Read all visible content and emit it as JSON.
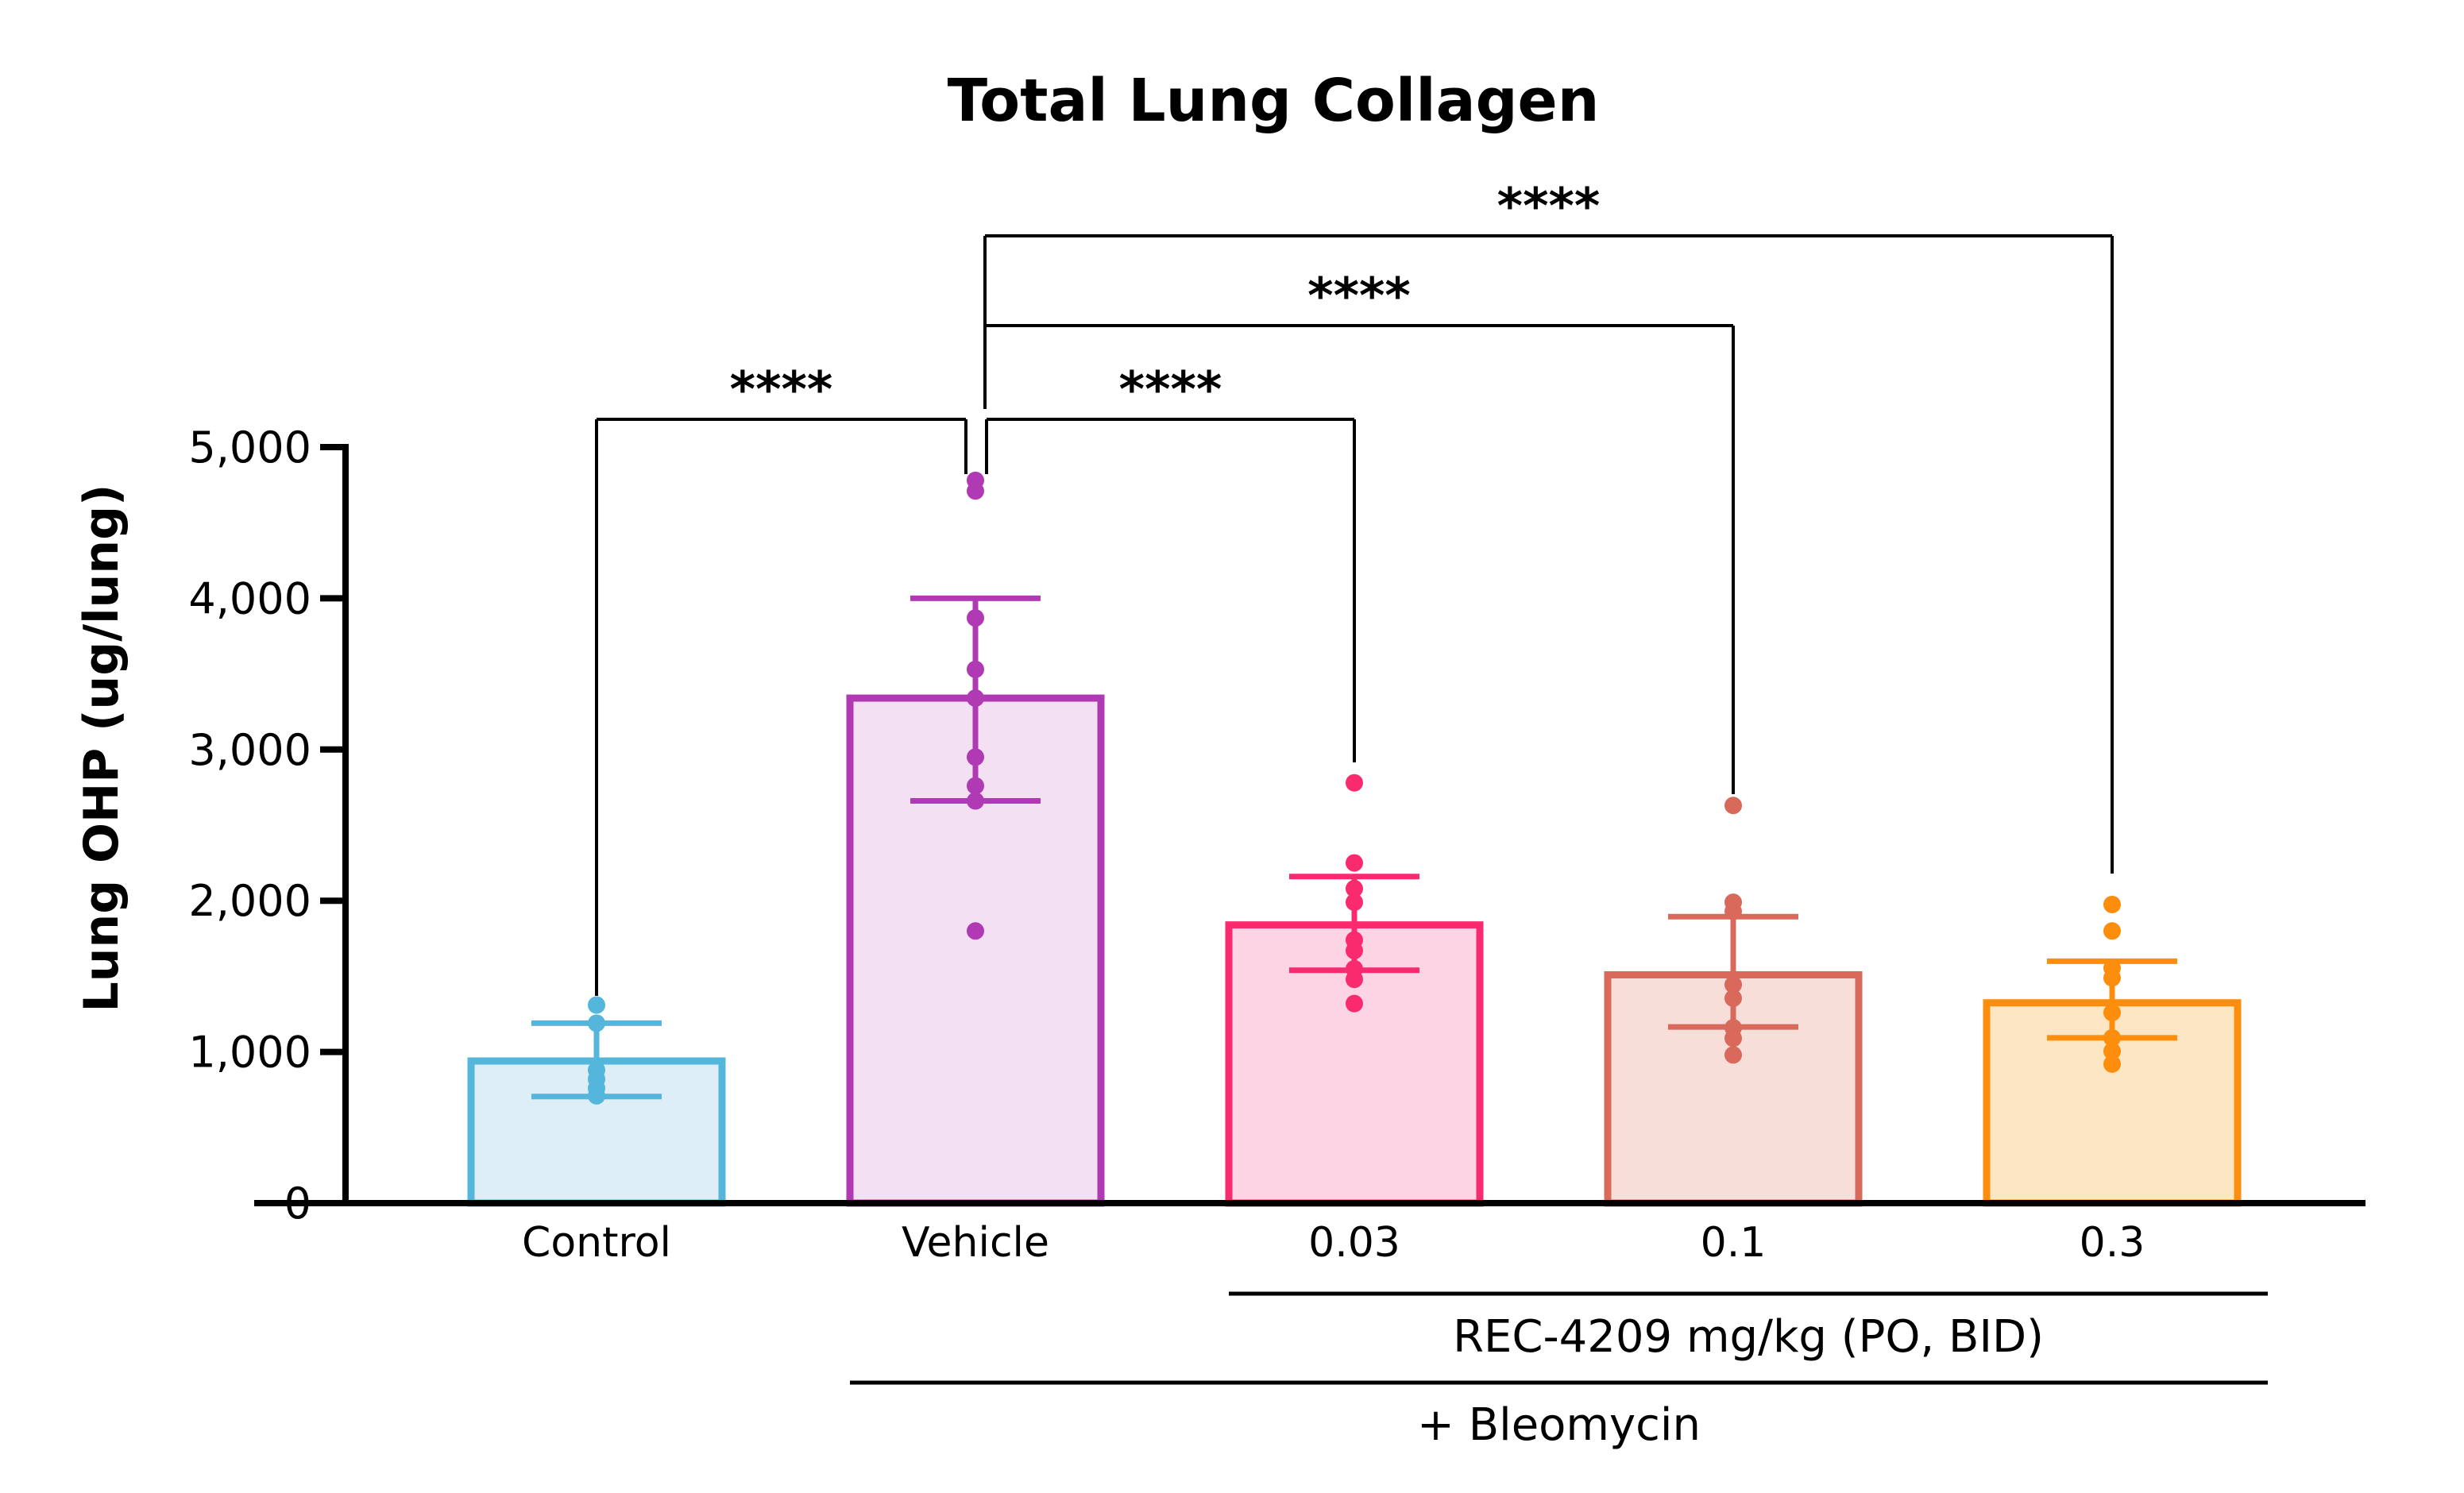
{
  "chart_data": {
    "type": "bar",
    "title": "Total Lung Collagen",
    "ylabel": "Lung OHP (ug/lung)",
    "xlabel": "",
    "ylim": [
      0,
      5000
    ],
    "yticks": [
      0,
      1000,
      2000,
      3000,
      4000,
      5000
    ],
    "ytick_labels": [
      "0",
      "1,000",
      "2,000",
      "3,000",
      "4,000",
      "5,000"
    ],
    "grid": "off",
    "legend": "none",
    "categories": [
      "Control",
      "Vehicle",
      "0.03",
      "0.1",
      "0.3"
    ],
    "series": [
      {
        "name": "Control",
        "mean": 940,
        "err_low": 705,
        "err_high": 1190,
        "points": [
          1310,
          1190,
          880,
          820,
          760,
          710
        ],
        "fill": "#ddeef7",
        "stroke": "#54b6da"
      },
      {
        "name": "Vehicle",
        "mean": 3340,
        "err_low": 2660,
        "err_high": 4000,
        "points": [
          4780,
          4710,
          3870,
          3530,
          3340,
          2950,
          2760,
          2660,
          1800
        ],
        "fill": "#f4e0f3",
        "stroke": "#b03ab3"
      },
      {
        "name": "0.03",
        "mean": 1840,
        "err_low": 1540,
        "err_high": 2160,
        "points": [
          2780,
          2250,
          2080,
          1990,
          1740,
          1670,
          1550,
          1480,
          1320
        ],
        "fill": "#fdd4e3",
        "stroke": "#fa2a6f"
      },
      {
        "name": "0.1",
        "mean": 1510,
        "err_low": 1165,
        "err_high": 1895,
        "points": [
          2630,
          1990,
          1930,
          1445,
          1355,
          1160,
          1090,
          980
        ],
        "fill": "#f8ded8",
        "stroke": "#d8695b"
      },
      {
        "name": "0.3",
        "mean": 1325,
        "err_low": 1093,
        "err_high": 1600,
        "points": [
          1975,
          1800,
          1555,
          1490,
          1260,
          1093,
          1005,
          920
        ],
        "fill": "#fde6c4",
        "stroke": "#fc8d0d"
      }
    ],
    "significance": [
      {
        "left": "Control",
        "right": "Vehicle",
        "label": "****"
      },
      {
        "left": "Vehicle",
        "right": "0.03",
        "label": "****"
      },
      {
        "left": "Vehicle",
        "right": "0.1",
        "label": "****"
      },
      {
        "left": "Vehicle",
        "right": "0.3",
        "label": "****"
      }
    ],
    "group_annotations": [
      {
        "label": "REC-4209 mg/kg (PO, BID)",
        "from": "0.03",
        "to": "0.3"
      },
      {
        "label": "+ Bleomycin",
        "from": "Vehicle",
        "to": "0.3"
      }
    ],
    "axis_color": "#000000",
    "background_color": "#ffffff"
  }
}
